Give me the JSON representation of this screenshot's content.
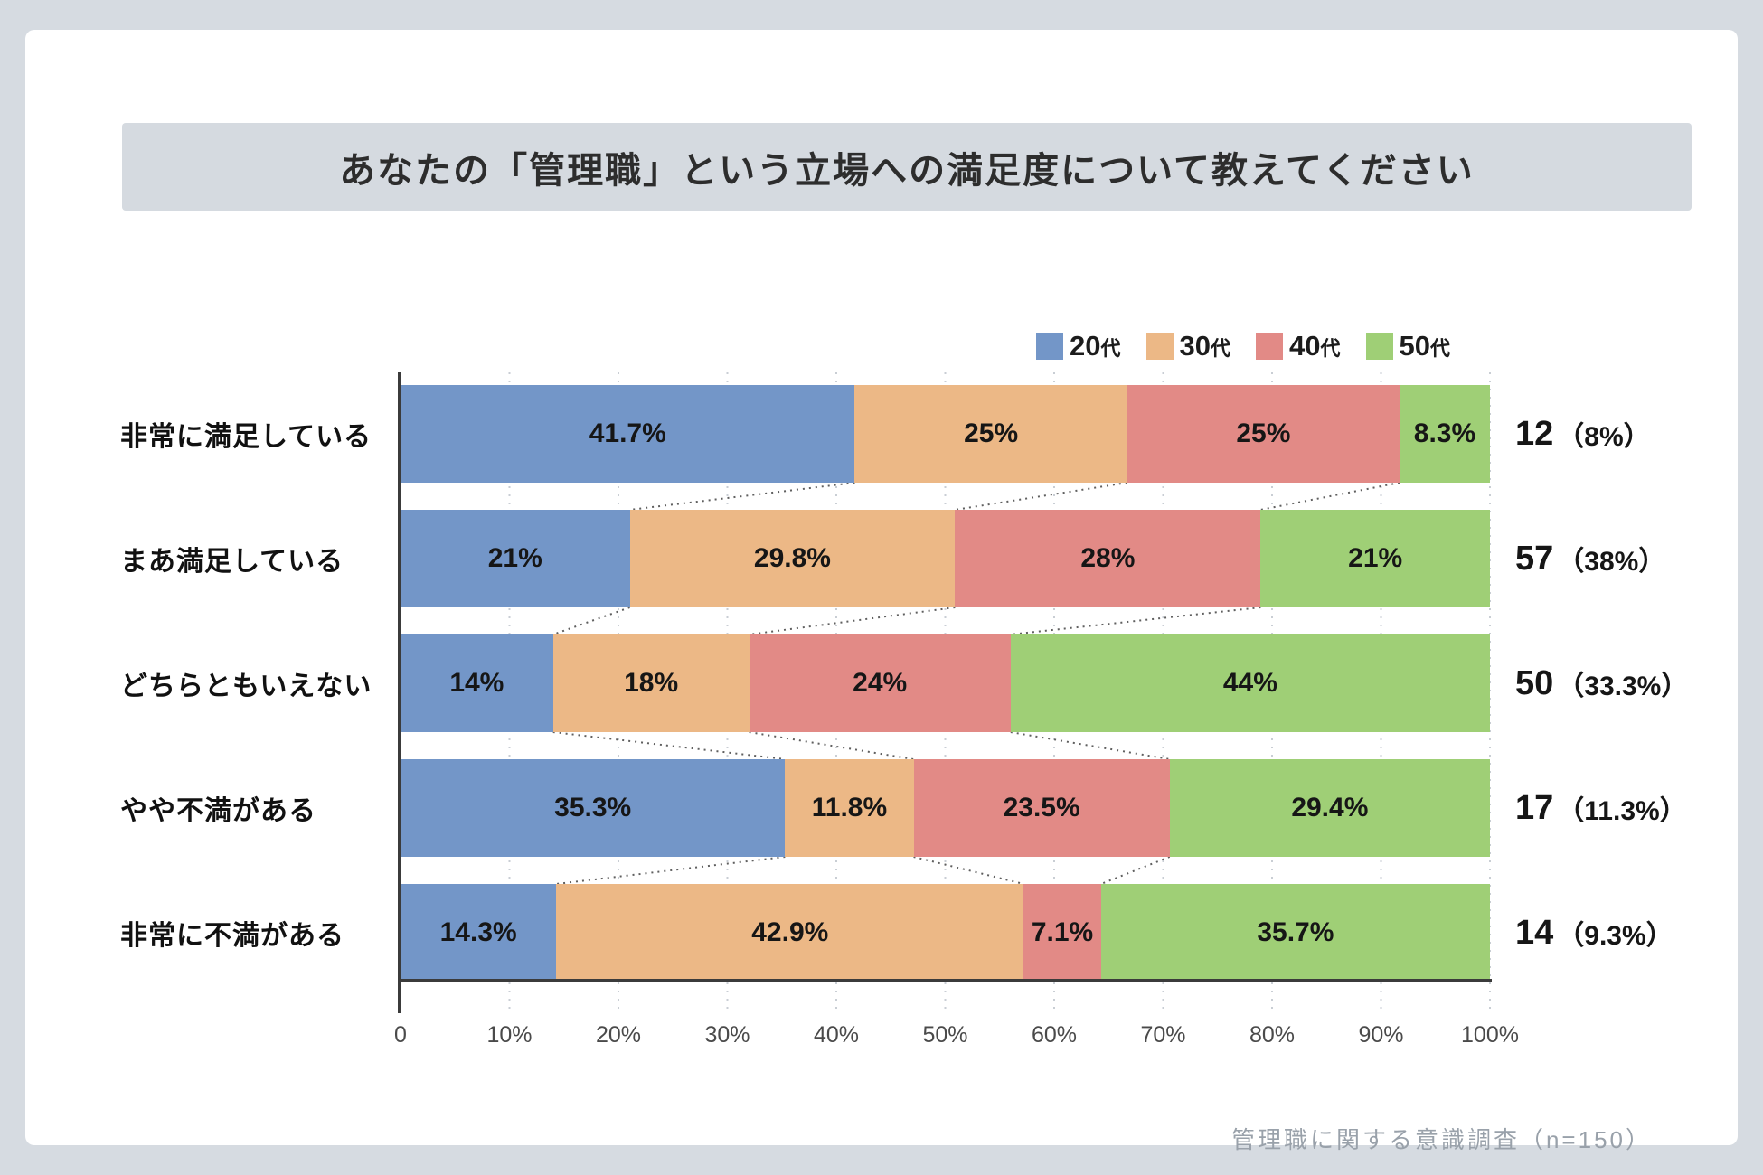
{
  "header": {
    "title": "あなたの「管理職」という立場への満足度について教えてください"
  },
  "footer": {
    "source": "管理職に関する意識調査（n=150）"
  },
  "colors": {
    "background": "#d6dbe1",
    "card": "#ffffff",
    "title_bar": "#d5dae0",
    "axis": "#3b3b3b",
    "gridline": "#c9ced4",
    "connector": "#5f5f5f"
  },
  "chart_data": {
    "type": "bar",
    "orientation": "horizontal",
    "stacked": true,
    "title": "あなたの「管理職」という立場への満足度について教えてください",
    "categories": [
      "非常に満足している",
      "まあ満足している",
      "どちらともいえない",
      "やや不満がある",
      "非常に不満がある"
    ],
    "series": [
      {
        "name": "20代",
        "color": "#7396c8",
        "values": [
          41.7,
          21,
          14,
          35.3,
          14.3
        ]
      },
      {
        "name": "30代",
        "color": "#ecb886",
        "values": [
          25,
          29.8,
          18,
          11.8,
          42.9
        ]
      },
      {
        "name": "40代",
        "color": "#e28a86",
        "values": [
          25,
          28,
          24,
          23.5,
          7.1
        ]
      },
      {
        "name": "50代",
        "color": "#9fcf76",
        "values": [
          8.3,
          21,
          44,
          29.4,
          35.7
        ]
      }
    ],
    "totals": [
      {
        "count": "12",
        "pct": "（8%）"
      },
      {
        "count": "57",
        "pct": "（38%）"
      },
      {
        "count": "50",
        "pct": "（33.3%）"
      },
      {
        "count": "17",
        "pct": "（11.3%）"
      },
      {
        "count": "14",
        "pct": "（9.3%）"
      }
    ],
    "x_ticks": [
      "0",
      "10%",
      "20%",
      "30%",
      "40%",
      "50%",
      "60%",
      "70%",
      "80%",
      "90%",
      "100%"
    ],
    "xlim": [
      0,
      100
    ],
    "unit": "%",
    "legend_position": "top-right",
    "grid": "vertical-dotted",
    "connectors": "dotted-links-between-adjacent-row-segment-boundaries"
  }
}
